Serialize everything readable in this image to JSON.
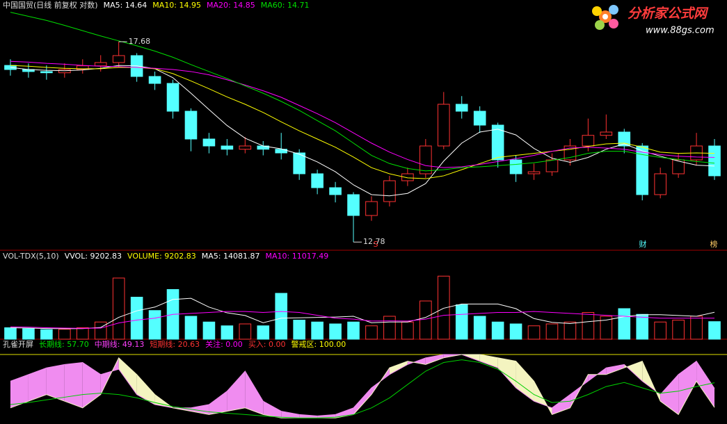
{
  "logo": {
    "name": "分析家公式网",
    "url": "www.88gs.com"
  },
  "markers": [
    "S",
    "财",
    "榜"
  ],
  "chart_data": [
    {
      "type": "candlestick",
      "title": "中国国贸(日线 前复权 对数)",
      "up_color": "#ff3232",
      "down_color": "#54ffff",
      "ylim": [
        12.58,
        18.7
      ],
      "legend": [
        {
          "text": "MA5: 14.64",
          "color": "#ffffff"
        },
        {
          "text": "MA10: 14.95",
          "color": "#ffff00"
        },
        {
          "text": "MA20: 14.85",
          "color": "#ff00ff"
        },
        {
          "text": "MA60: 14.71",
          "color": "#00e000"
        }
      ],
      "annotations": [
        {
          "text": "17.68",
          "value": 17.68
        },
        {
          "text": "12.78",
          "value": 12.78
        }
      ],
      "open": [
        17.1,
        17.0,
        16.95,
        16.92,
        17.0,
        17.09,
        17.17,
        17.34,
        16.83,
        16.66,
        15.98,
        15.3,
        15.13,
        15.05,
        15.13,
        15.05,
        14.96,
        14.45,
        14.11,
        13.94,
        13.43,
        13.77,
        14.28,
        14.45,
        15.13,
        16.15,
        15.98,
        15.64,
        14.79,
        14.45,
        14.5,
        14.79,
        15.13,
        15.39,
        15.47,
        15.13,
        13.94,
        14.45,
        14.79,
        15.13
      ],
      "high": [
        17.25,
        17.15,
        17.1,
        17.15,
        17.25,
        17.35,
        17.68,
        17.4,
        16.95,
        16.75,
        16.05,
        15.45,
        15.3,
        15.35,
        15.25,
        15.45,
        15.05,
        14.55,
        14.25,
        14.0,
        13.9,
        14.4,
        14.6,
        15.3,
        16.45,
        16.35,
        16.1,
        15.7,
        14.9,
        14.7,
        14.95,
        15.3,
        15.8,
        15.9,
        15.55,
        15.2,
        14.6,
        14.95,
        15.45,
        15.3
      ],
      "low": [
        16.85,
        16.8,
        16.75,
        16.8,
        16.9,
        16.95,
        17.05,
        16.7,
        16.5,
        15.8,
        15.0,
        14.95,
        14.9,
        14.95,
        14.9,
        14.8,
        14.3,
        13.95,
        13.75,
        12.78,
        13.3,
        13.65,
        14.15,
        14.35,
        15.05,
        15.8,
        15.45,
        14.6,
        14.25,
        14.3,
        14.4,
        14.65,
        15.0,
        15.3,
        14.95,
        13.8,
        13.85,
        14.35,
        14.65,
        14.3
      ],
      "close": [
        17.0,
        16.95,
        16.92,
        17.0,
        17.09,
        17.17,
        17.34,
        16.83,
        16.66,
        15.98,
        15.3,
        15.13,
        15.05,
        15.13,
        15.05,
        14.96,
        14.45,
        14.11,
        13.94,
        13.43,
        13.77,
        14.28,
        14.45,
        15.13,
        16.15,
        15.98,
        15.64,
        14.79,
        14.45,
        14.5,
        14.79,
        15.13,
        15.39,
        15.47,
        15.13,
        13.94,
        14.45,
        14.79,
        15.13,
        14.4
      ],
      "series": [
        {
          "color": "#ffffff",
          "values": [
            17.05,
            17.0,
            16.98,
            16.97,
            16.99,
            17.03,
            17.1,
            17.09,
            17.02,
            16.8,
            16.42,
            16.02,
            15.63,
            15.32,
            15.13,
            15.06,
            14.93,
            14.74,
            14.5,
            14.18,
            13.94,
            13.91,
            13.97,
            14.21,
            14.76,
            15.2,
            15.47,
            15.54,
            15.4,
            15.07,
            14.83,
            14.73,
            14.85,
            15.05,
            15.18,
            15.01,
            14.88,
            14.76,
            14.66,
            14.64
          ]
        },
        {
          "color": "#ffff00",
          "values": [
            17.1,
            17.08,
            17.05,
            17.03,
            17.02,
            17.02,
            17.05,
            17.05,
            17.02,
            16.9,
            16.72,
            16.53,
            16.33,
            16.15,
            15.95,
            15.72,
            15.5,
            15.3,
            15.1,
            14.86,
            14.6,
            14.45,
            14.35,
            14.33,
            14.4,
            14.55,
            14.7,
            14.85,
            14.9,
            14.95,
            15.0,
            15.05,
            15.12,
            15.18,
            15.2,
            15.1,
            14.98,
            14.95,
            14.96,
            14.95
          ]
        },
        {
          "color": "#ff00ff",
          "values": [
            17.2,
            17.18,
            17.15,
            17.13,
            17.1,
            17.08,
            17.07,
            17.05,
            17.03,
            17.0,
            16.95,
            16.87,
            16.75,
            16.62,
            16.48,
            16.32,
            16.12,
            15.92,
            15.7,
            15.45,
            15.2,
            14.98,
            14.8,
            14.65,
            14.6,
            14.62,
            14.68,
            14.75,
            14.82,
            14.9,
            15.0,
            15.08,
            15.1,
            15.08,
            15.05,
            14.98,
            14.92,
            14.88,
            14.86,
            14.85
          ]
        },
        {
          "color": "#00e000",
          "values": [
            18.4,
            18.3,
            18.2,
            18.08,
            17.95,
            17.82,
            17.7,
            17.58,
            17.45,
            17.3,
            17.12,
            16.95,
            16.78,
            16.6,
            16.42,
            16.22,
            16.0,
            15.75,
            15.5,
            15.2,
            14.9,
            14.7,
            14.58,
            14.52,
            14.55,
            14.6,
            14.62,
            14.65,
            14.68,
            14.72,
            14.78,
            14.85,
            14.95,
            15.0,
            15.0,
            14.92,
            14.85,
            14.8,
            14.75,
            14.71
          ]
        }
      ]
    },
    {
      "type": "volume",
      "title": "VOL-TDX(5,10)",
      "ylim": [
        0,
        40000
      ],
      "legend": [
        {
          "text": "VVOL: 9202.83",
          "color": "#ffffff"
        },
        {
          "text": "VOLUME: 9202.83",
          "color": "#ffff00"
        },
        {
          "text": "MA5: 14081.87",
          "color": "#ffffff"
        },
        {
          "text": "MA10: 11017.49",
          "color": "#ff00ff"
        }
      ],
      "values": [
        6000,
        5500,
        5000,
        5200,
        6000,
        9000,
        32000,
        22000,
        15000,
        26000,
        12000,
        9000,
        7000,
        8000,
        7000,
        24000,
        10000,
        9000,
        8000,
        9000,
        7000,
        12000,
        9000,
        20000,
        33000,
        18000,
        12000,
        9000,
        8000,
        7000,
        8000,
        9000,
        14000,
        12000,
        16000,
        13000,
        9000,
        10000,
        12000,
        9202.83
      ],
      "series": [
        {
          "color": "#ffffff",
          "values": [
            6000,
            5800,
            5600,
            5500,
            5540,
            6140,
            11440,
            14840,
            16800,
            20800,
            21400,
            16800,
            13800,
            12400,
            8600,
            11000,
            11200,
            11400,
            11600,
            12000,
            8600,
            9000,
            9000,
            11400,
            16200,
            18400,
            18400,
            18400,
            16000,
            10800,
            8800,
            8200,
            9200,
            10000,
            11800,
            12800,
            12800,
            12400,
            12000,
            14081.87
          ]
        },
        {
          "color": "#ff00ff",
          "values": [
            6500,
            6300,
            6000,
            5800,
            5700,
            5800,
            8500,
            10000,
            11000,
            13000,
            13500,
            14000,
            14500,
            14500,
            14000,
            14500,
            14000,
            12500,
            11000,
            10500,
            9500,
            9600,
            9500,
            10500,
            12500,
            13000,
            13500,
            14000,
            14000,
            14500,
            14000,
            13500,
            13000,
            12500,
            12000,
            11500,
            11000,
            11000,
            11000,
            11017.49
          ]
        }
      ]
    },
    {
      "type": "band",
      "title": "孔雀开屏",
      "ylim": [
        0,
        100
      ],
      "warning": 100,
      "legend": [
        {
          "text": "长期线: 57.70",
          "color": "#00e000"
        },
        {
          "text": "中期线: 49.13",
          "color": "#ff40ff"
        },
        {
          "text": "短期线: 20.63",
          "color": "#ff3232"
        },
        {
          "text": "关注: 0.00",
          "color": "#ff00ff"
        },
        {
          "text": "买入: 0.00",
          "color": "#ff3232"
        },
        {
          "text": "警戒区: 100.00",
          "color": "#ffff00"
        }
      ],
      "long": [
        25,
        28,
        32,
        36,
        40,
        42,
        40,
        35,
        28,
        22,
        18,
        14,
        12,
        10,
        8,
        6,
        5,
        5,
        6,
        10,
        20,
        35,
        55,
        75,
        88,
        92,
        88,
        78,
        60,
        40,
        28,
        30,
        40,
        52,
        58,
        50,
        42,
        45,
        52,
        57.7
      ],
      "mid": [
        60,
        70,
        80,
        85,
        88,
        70,
        78,
        40,
        25,
        20,
        20,
        25,
        45,
        75,
        30,
        15,
        10,
        8,
        10,
        20,
        50,
        70,
        85,
        95,
        100,
        100,
        90,
        80,
        50,
        30,
        20,
        40,
        60,
        80,
        85,
        60,
        40,
        70,
        90,
        49.13
      ],
      "short": [
        20,
        30,
        40,
        30,
        20,
        40,
        95,
        70,
        40,
        20,
        15,
        10,
        15,
        20,
        10,
        5,
        5,
        5,
        5,
        10,
        40,
        80,
        90,
        85,
        95,
        100,
        100,
        95,
        90,
        60,
        10,
        20,
        70,
        70,
        80,
        90,
        30,
        10,
        60,
        20.63
      ],
      "mid_color": "#f08cf0",
      "short_color": "#f4f4c0",
      "long_color": "#00d000",
      "warning_color": "#e0e000"
    }
  ]
}
